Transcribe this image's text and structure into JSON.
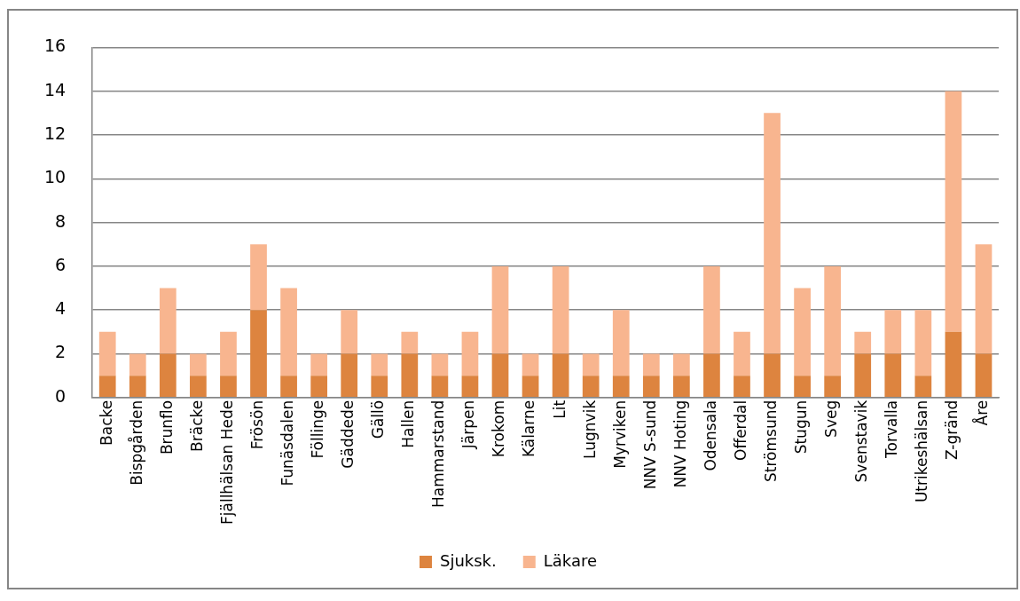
{
  "chart_data": {
    "type": "bar",
    "stacked": true,
    "categories": [
      "Backe",
      "Bispgården",
      "Brunflo",
      "Bräcke",
      "Fjällhälsan Hede",
      "Frösön",
      "Funäsdalen",
      "Föllinge",
      "Gäddede",
      "Gällö",
      "Hallen",
      "Hammarstand",
      "Järpen",
      "Krokom",
      "Kälarne",
      "Lit",
      "Lugnvik",
      "Myrviken",
      "NNV S-sund",
      "NNV Hoting",
      "Odensala",
      "Offerdal",
      "Strömsund",
      "Stugun",
      "Sveg",
      "Svenstavik",
      "Torvalla",
      "Utrikeshälsan",
      "Z-gränd",
      "Åre"
    ],
    "series": [
      {
        "name": "Sjuksk.",
        "color": "#dd843f",
        "values": [
          1,
          1,
          2,
          1,
          1,
          4,
          1,
          1,
          2,
          1,
          2,
          1,
          1,
          2,
          1,
          2,
          1,
          1,
          1,
          1,
          2,
          1,
          2,
          1,
          1,
          2,
          2,
          1,
          3,
          2
        ]
      },
      {
        "name": "Läkare",
        "color": "#f8b58f",
        "values": [
          2,
          1,
          3,
          1,
          2,
          3,
          4,
          1,
          2,
          1,
          1,
          1,
          2,
          4,
          1,
          4,
          1,
          3,
          1,
          1,
          4,
          2,
          11,
          4,
          5,
          1,
          2,
          3,
          11,
          5
        ]
      }
    ],
    "ylim": [
      0,
      16
    ],
    "yticks": [
      0,
      2,
      4,
      6,
      8,
      10,
      12,
      14,
      16
    ],
    "grid": "y",
    "legend": "bottom"
  }
}
